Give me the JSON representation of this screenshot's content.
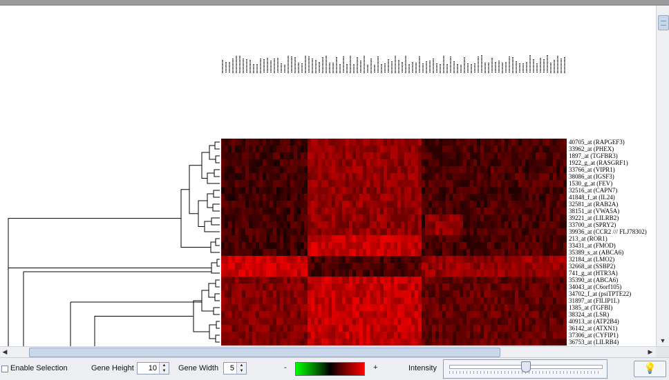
{
  "heatmap": {
    "rows": 30,
    "cols": 100,
    "gene_labels": [
      "40705_at (RAPGEF3)",
      "33962_at (PHEX)",
      "1897_at (TGFBR3)",
      "1922_g_at (RASGRF1)",
      "33766_at (VIPR1)",
      "38086_at (IGSF3)",
      "1530_g_at (FEV)",
      "32516_at (CAPN7)",
      "41848_f_at (IL24)",
      "32581_at (RAB2A)",
      "38151_at (VWA5A)",
      "39221_at (LILRB2)",
      "33700_at (SPRY2)",
      "39936_at (CCR2 /// FLJ78302)",
      "213_at (ROR1)",
      "33431_at (FMOD)",
      "35389_s_at (ABCA6)",
      "32184_at (LMO2)",
      "32668_at (SSBP2)",
      "741_g_at (HTR3A)",
      "35390_at (ABCA6)",
      "34043_at (C6orf105)",
      "34702_f_at (psiTPTE22)",
      "31897_at (FILIP1L)",
      "1385_at (TGFBI)",
      "38324_at (LSR)",
      "40913_at (ATP2B4)",
      "36142_at (ATXN1)",
      "37306_at (CYFIP1)",
      "36753_at (LILRB4)"
    ]
  },
  "controls": {
    "enable_selection_label": "Enable Selection",
    "enable_selection_checked": false,
    "gene_height_label": "Gene Height",
    "gene_height_value": "10",
    "gene_width_label": "Gene Width",
    "gene_width_value": "5",
    "minus_label": "-",
    "plus_label": "+",
    "intensity_label": "Intensity",
    "intensity_level": 0.5
  },
  "colors": {
    "low": "#00ff00",
    "mid": "#000000",
    "high": "#ff0000"
  },
  "icons": {
    "intensity_button": "lightbulb-icon"
  }
}
